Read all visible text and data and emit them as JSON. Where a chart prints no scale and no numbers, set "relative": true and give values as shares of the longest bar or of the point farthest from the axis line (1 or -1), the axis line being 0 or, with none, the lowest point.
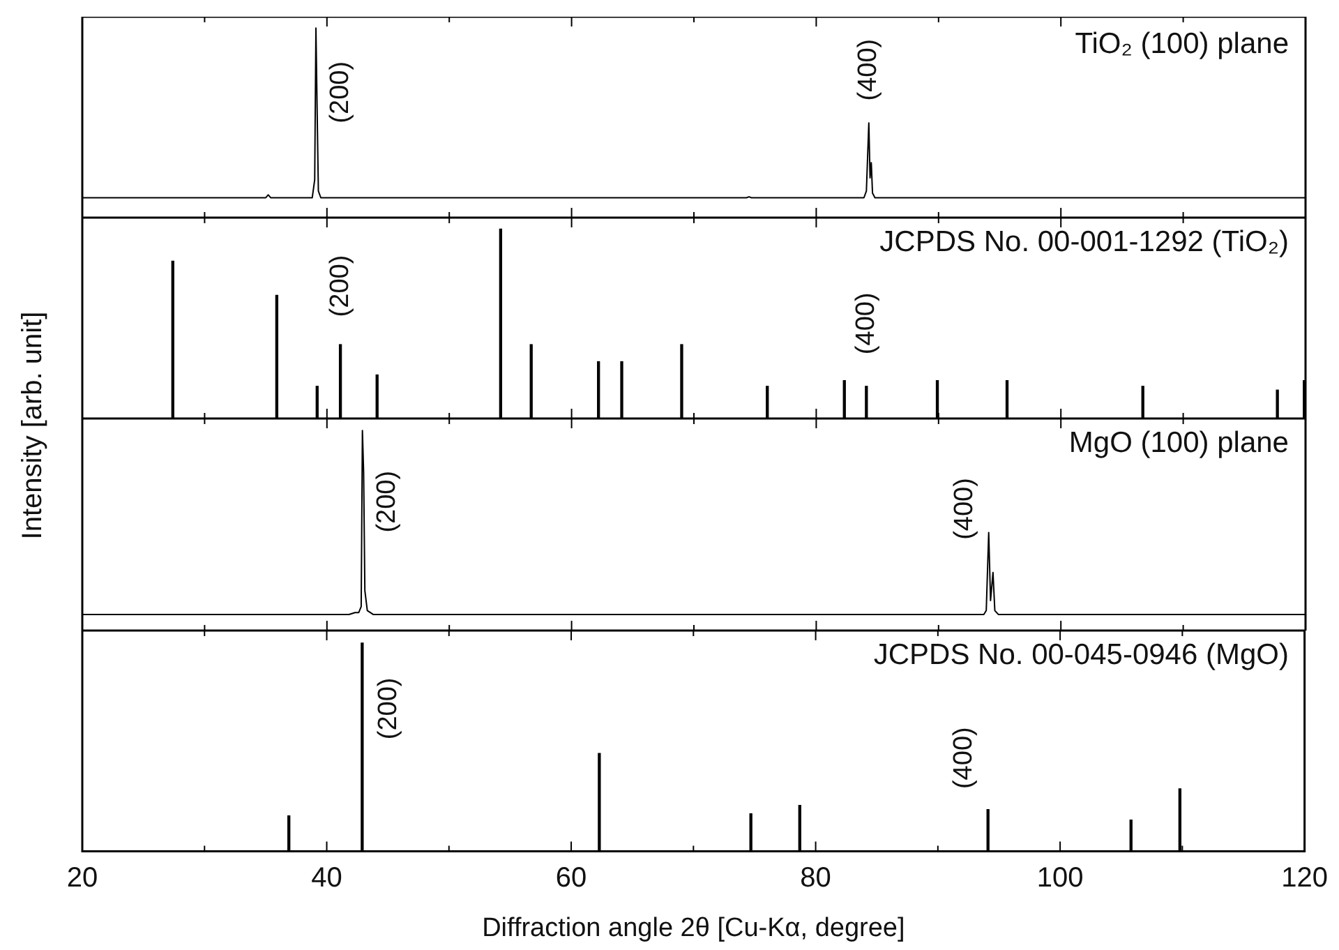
{
  "chart_data": [
    {
      "type": "line",
      "title": "TiO₂ (100) plane",
      "ylabel": "Intensity [arb. unit]",
      "relative": true,
      "marker": "none",
      "xlim": [
        20,
        120
      ],
      "xticks": [
        20,
        {
          "value": 30,
          "label": null
        },
        40,
        {
          "value": 50,
          "label": null
        },
        60,
        {
          "value": 70,
          "label": null
        },
        80,
        {
          "value": 90,
          "label": null
        },
        100,
        {
          "value": 110,
          "label": null
        },
        120
      ],
      "tick_labels": false,
      "series": [
        {
          "color": "#000000",
          "x": [
            20,
            35.0,
            35.2,
            35.4,
            38.8,
            39.0,
            39.1,
            39.2,
            39.3,
            39.5,
            74.3,
            74.5,
            74.7,
            83.9,
            84.1,
            84.3,
            84.4,
            84.5,
            84.6,
            84.8,
            120
          ],
          "values": [
            0.105,
            0.105,
            0.12,
            0.105,
            0.105,
            0.2,
            1,
            0.56,
            0.14,
            0.105,
            0.105,
            0.11,
            0.105,
            0.105,
            0.14,
            0.5,
            0.21,
            0.29,
            0.13,
            0.105,
            0.105
          ]
        }
      ],
      "annotations": [
        {
          "text": "(200)",
          "x": 39.1,
          "y": 1
        },
        {
          "text": "(400)",
          "x": 84.3,
          "y": 0.5
        }
      ]
    },
    {
      "type": "bar",
      "title": "JCPDS No. 00-001-1292 (TiO₂)",
      "relative": true,
      "xlim": [
        20,
        120
      ],
      "xticks": [
        20,
        {
          "value": 30,
          "label": null
        },
        40,
        {
          "value": 50,
          "label": null
        },
        60,
        {
          "value": 70,
          "label": null
        },
        80,
        {
          "value": 90,
          "label": null
        },
        100,
        {
          "value": 110,
          "label": null
        },
        120
      ],
      "tick_labels": false,
      "series": [
        {
          "color": "#000000",
          "x": [
            27.4,
            35.9,
            39.2,
            41.1,
            44.1,
            54.2,
            56.7,
            62.2,
            64.1,
            69.0,
            76.0,
            82.3,
            84.1,
            89.9,
            95.6,
            106.7,
            117.7,
            119.9
          ],
          "values": [
            0.83,
            0.65,
            0.17,
            0.39,
            0.23,
            1,
            0.39,
            0.3,
            0.3,
            0.39,
            0.17,
            0.2,
            0.17,
            0.2,
            0.2,
            0.17,
            0.15,
            0.2
          ]
        }
      ],
      "annotations": [
        {
          "text": "(200)",
          "x": 41.1,
          "y": 0.39
        },
        {
          "text": "(400)",
          "x": 84.1,
          "y": 0.17
        }
      ]
    },
    {
      "type": "line",
      "title": "MgO (100) plane",
      "relative": true,
      "marker": "none",
      "xlim": [
        20,
        120
      ],
      "xticks": [
        20,
        {
          "value": 30,
          "label": null
        },
        40,
        {
          "value": 50,
          "label": null
        },
        60,
        {
          "value": 70,
          "label": null
        },
        80,
        {
          "value": 90,
          "label": null
        },
        100,
        {
          "value": 110,
          "label": null
        },
        120
      ],
      "tick_labels": false,
      "series": [
        {
          "color": "#000000",
          "x": [
            20,
            41.8,
            42.3,
            42.6,
            42.8,
            42.9,
            43.0,
            43.1,
            43.3,
            43.8,
            93.7,
            93.9,
            94.1,
            94.25,
            94.45,
            94.6,
            94.9,
            120
          ],
          "values": [
            0.08,
            0.08,
            0.09,
            0.09,
            0.12,
            1,
            0.79,
            0.2,
            0.1,
            0.08,
            0.08,
            0.1,
            0.49,
            0.15,
            0.29,
            0.1,
            0.08,
            0.08
          ]
        }
      ],
      "annotations": [
        {
          "text": "(200)",
          "x": 42.9,
          "y": 1
        },
        {
          "text": "(400)",
          "x": 94.1,
          "y": 0.49
        }
      ]
    },
    {
      "type": "bar",
      "title": "JCPDS No. 00-045-0946 (MgO)",
      "xlabel": "Diffraction angle 2θ [Cu-Kα, degree]",
      "relative": true,
      "xlim": [
        20,
        120
      ],
      "xticks": [
        20,
        {
          "value": 30,
          "label": null
        },
        40,
        {
          "value": 50,
          "label": null
        },
        60,
        {
          "value": 70,
          "label": null
        },
        80,
        {
          "value": 90,
          "label": null
        },
        100,
        {
          "value": 110,
          "label": null
        },
        120
      ],
      "tick_labels": "x",
      "series": [
        {
          "color": "#000000",
          "x": [
            36.9,
            42.9,
            62.3,
            74.7,
            78.7,
            94.1,
            105.8,
            109.8
          ],
          "values": [
            0.17,
            1,
            0.47,
            0.18,
            0.22,
            0.2,
            0.15,
            0.3
          ]
        }
      ],
      "annotations": [
        {
          "text": "(200)",
          "x": 42.9,
          "y": 1
        },
        {
          "text": "(400)",
          "x": 94.1,
          "y": 0.2
        }
      ]
    }
  ]
}
